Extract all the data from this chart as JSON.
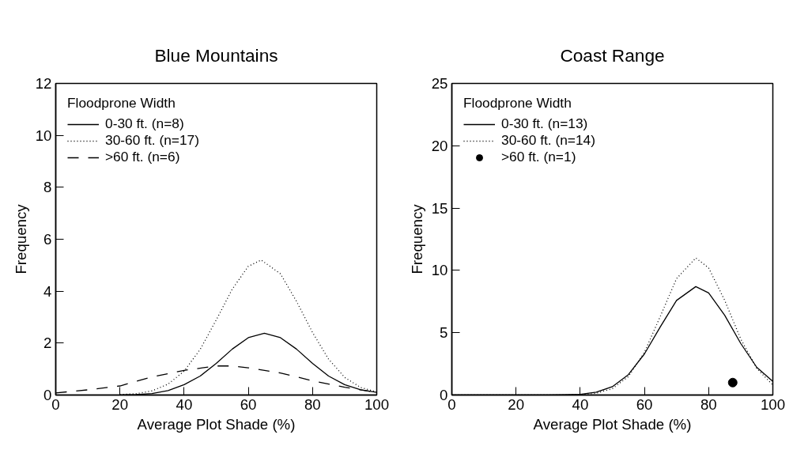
{
  "chart_data": [
    {
      "type": "line",
      "title": "Blue Mountains",
      "xlabel": "Average Plot Shade (%)",
      "ylabel": "Frequency",
      "legend_title": "Floodprone Width",
      "legend": "top left",
      "grid": false,
      "xlim": [
        0,
        100
      ],
      "ylim": [
        0,
        12
      ],
      "xticks": [
        0,
        20,
        40,
        60,
        80,
        100
      ],
      "yticks": [
        0,
        2,
        4,
        6,
        8,
        10,
        12
      ],
      "series": [
        {
          "name": "0-30 ft. (n=8)",
          "color": "#000000",
          "line_style": "solid",
          "x": [
            20,
            25,
            30,
            35,
            40,
            45,
            50,
            55,
            60,
            65,
            70,
            75,
            80,
            85,
            90,
            95,
            100
          ],
          "values": [
            0,
            0.02,
            0.06,
            0.17,
            0.4,
            0.73,
            1.22,
            1.77,
            2.21,
            2.38,
            2.21,
            1.77,
            1.22,
            0.73,
            0.4,
            0.2,
            0.1
          ]
        },
        {
          "name": "30-60 ft. (n=17)",
          "color": "#000000",
          "line_style": "dotted",
          "x": [
            20,
            25,
            30,
            35,
            40,
            45,
            50,
            55,
            60,
            64,
            70,
            75,
            80,
            85,
            90,
            95,
            100
          ],
          "values": [
            0.02,
            0.05,
            0.16,
            0.42,
            0.92,
            1.76,
            2.89,
            4.08,
            4.96,
            5.2,
            4.67,
            3.61,
            2.41,
            1.38,
            0.68,
            0.29,
            0.12
          ]
        },
        {
          "name": ">60 ft. (n=6)",
          "color": "#000000",
          "line_style": "dashed",
          "x": [
            0,
            10,
            20,
            30,
            40,
            50,
            55,
            60,
            70,
            80,
            90,
            100
          ],
          "values": [
            0.08,
            0.2,
            0.35,
            0.7,
            0.95,
            1.12,
            1.12,
            1.05,
            0.85,
            0.55,
            0.3,
            0.1
          ]
        }
      ]
    },
    {
      "type": "line",
      "title": "Coast Range",
      "xlabel": "Average Plot Shade (%)",
      "ylabel": "Frequency",
      "legend_title": "Floodprone Width",
      "legend": "top left",
      "grid": false,
      "xlim": [
        0,
        100
      ],
      "ylim": [
        0,
        25
      ],
      "xticks": [
        0,
        20,
        40,
        60,
        80,
        100
      ],
      "yticks": [
        0,
        5,
        10,
        15,
        20,
        25
      ],
      "series": [
        {
          "name": "0-30 ft. (n=13)",
          "color": "#000000",
          "line_style": "solid",
          "x": [
            0,
            30,
            35,
            40,
            45,
            50,
            55,
            60,
            65,
            70,
            76,
            80,
            85,
            90,
            95,
            100
          ],
          "values": [
            0,
            0,
            0.02,
            0.06,
            0.23,
            0.67,
            1.64,
            3.3,
            5.5,
            7.59,
            8.7,
            8.19,
            6.4,
            4.14,
            2.22,
            1.1
          ]
        },
        {
          "name": "30-60 ft. (n=14)",
          "color": "#000000",
          "line_style": "dotted",
          "x": [
            0,
            35,
            40,
            45,
            50,
            55,
            60,
            65,
            70,
            76,
            80,
            85,
            90,
            95,
            100
          ],
          "values": [
            0,
            0,
            0.03,
            0.14,
            0.51,
            1.48,
            3.43,
            6.35,
            9.34,
            11,
            10.2,
            7.6,
            4.5,
            2.13,
            0.8
          ]
        },
        {
          "name": ">60 ft. (n=1)",
          "color": "#000000",
          "type": "scatter",
          "marker": "circle",
          "x": [
            87.5
          ],
          "values": [
            1.0
          ]
        }
      ]
    }
  ]
}
